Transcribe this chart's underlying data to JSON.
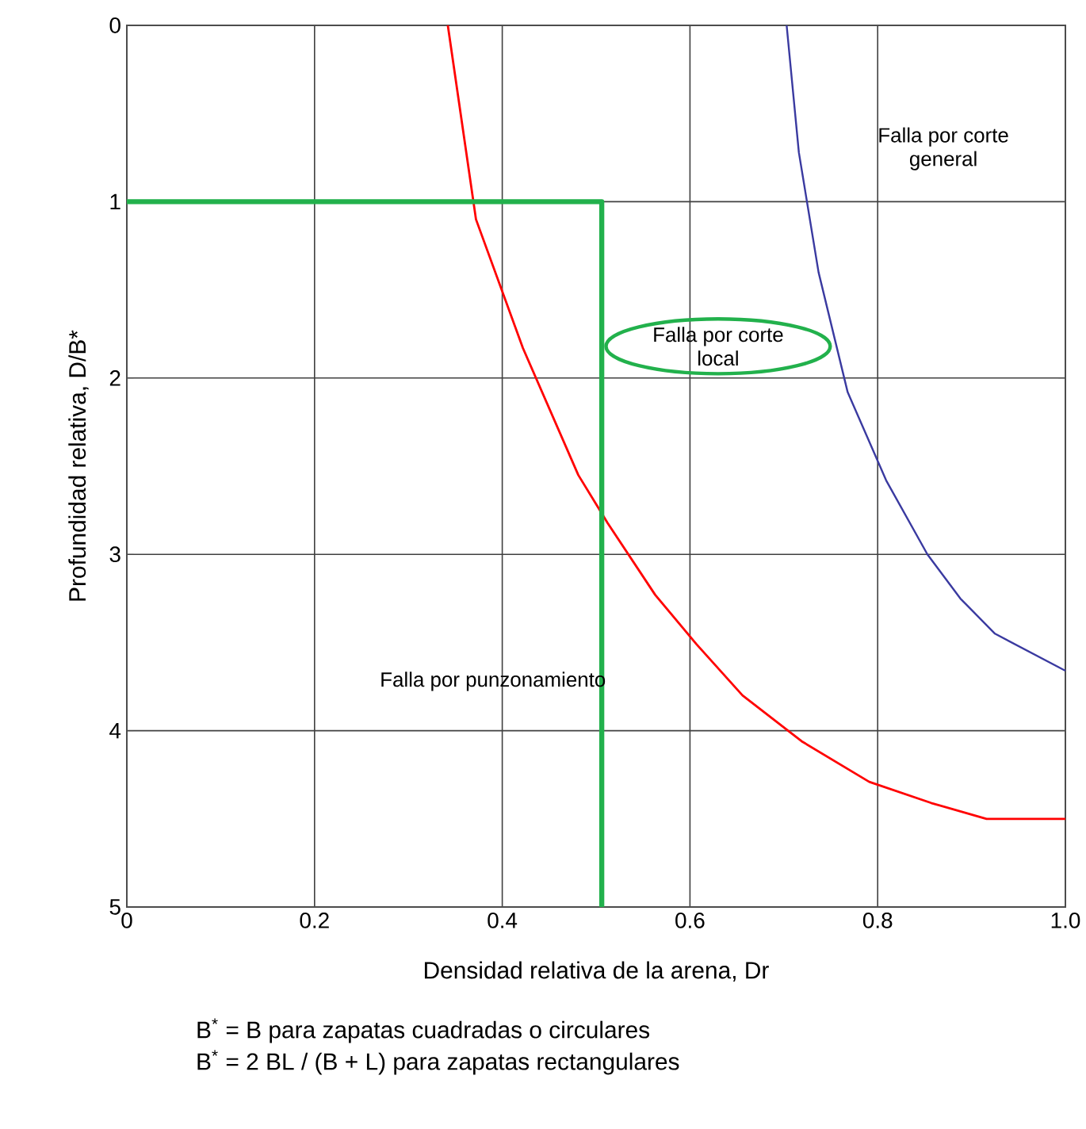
{
  "chart_data": {
    "type": "line",
    "xlabel": "Densidad relativa de la arena, Dr",
    "ylabel": "Profundidad relativa, D/B*",
    "xlim": [
      0,
      1
    ],
    "ylim": [
      5,
      0
    ],
    "xticks": [
      0,
      0.2,
      0.4,
      0.6,
      0.8,
      {
        "value": 1,
        "label": "1.0"
      }
    ],
    "yticks": [
      0,
      1,
      2,
      3,
      4,
      5
    ],
    "grid": true,
    "marker": "none",
    "line_style": "solid",
    "series": [
      {
        "color": "#ff0000",
        "x": [
          0.342,
          0.372,
          0.422,
          0.481,
          0.512,
          0.563,
          0.607,
          0.656,
          0.719,
          0.791,
          0.857,
          0.916,
          1.0
        ],
        "values": [
          0,
          1.1,
          1.83,
          2.55,
          2.82,
          3.23,
          3.51,
          3.8,
          4.06,
          4.29,
          4.41,
          4.5,
          4.5
        ]
      },
      {
        "color": "#3a3aa0",
        "x": [
          0.703,
          0.716,
          0.737,
          0.768,
          0.809,
          0.853,
          0.888,
          0.925,
          1.0
        ],
        "values": [
          0,
          0.72,
          1.4,
          2.08,
          2.58,
          3.0,
          3.25,
          3.45,
          3.66
        ]
      },
      {
        "color": "#22b14c",
        "x": [
          0,
          0.506,
          0.506
        ],
        "values": [
          1,
          1,
          5
        ]
      }
    ],
    "annotations": [
      "Falla por corte general",
      "Falla por corte local",
      "Falla  por punzonamiento",
      "B$^{*}$ = B para zapatas cuadradas o circulares",
      "B$^{*}$  = 2 BL / (B + L) para zapatas rectangulares"
    ]
  }
}
